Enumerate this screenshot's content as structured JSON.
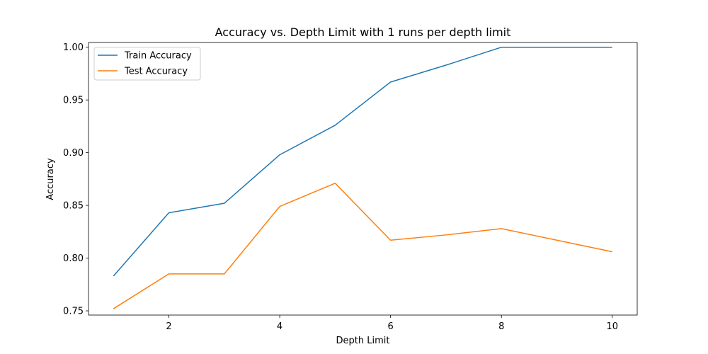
{
  "chart_data": {
    "type": "line",
    "title": "Accuracy vs. Depth Limit with 1 runs per depth limit",
    "xlabel": "Depth Limit",
    "ylabel": "Accuracy",
    "x": [
      1,
      2,
      3,
      4,
      5,
      6,
      7,
      8,
      9,
      10
    ],
    "xticks": [
      2,
      4,
      6,
      8,
      10
    ],
    "xtick_labels": [
      "2",
      "4",
      "6",
      "8",
      "10"
    ],
    "yticks": [
      0.75,
      0.8,
      0.85,
      0.9,
      0.95,
      1.0
    ],
    "ytick_labels": [
      "0.75",
      "0.80",
      "0.85",
      "0.90",
      "0.95",
      "1.00"
    ],
    "xlim": [
      0.55,
      10.45
    ],
    "ylim": [
      0.746,
      1.0045
    ],
    "grid": false,
    "legend_position": "upper left",
    "series": [
      {
        "name": "Train Accuracy",
        "color": "#1f77b4",
        "values": [
          0.783,
          0.843,
          0.852,
          0.898,
          0.926,
          0.967,
          0.983,
          1.0,
          1.0,
          1.0
        ]
      },
      {
        "name": "Test Accuracy",
        "color": "#ff7f0e",
        "values": [
          0.752,
          0.785,
          0.785,
          0.849,
          0.871,
          0.817,
          0.822,
          0.828,
          0.817,
          0.806
        ]
      }
    ]
  }
}
